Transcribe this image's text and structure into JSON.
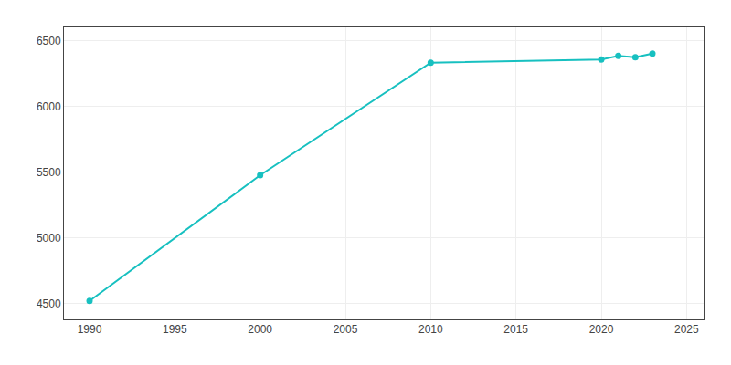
{
  "chart_data": {
    "type": "line",
    "x": [
      1990,
      2000,
      2010,
      2020,
      2021,
      2022,
      2023
    ],
    "values": [
      4521,
      5476,
      6331,
      6356,
      6383,
      6373,
      6400
    ],
    "color": "#17c0c0",
    "marker": "circle",
    "line_style": "solid",
    "xlim": [
      1988.5,
      2026
    ],
    "ylim": [
      4380,
      6600
    ],
    "xticks": [
      1990,
      1995,
      2000,
      2005,
      2010,
      2015,
      2020,
      2025
    ],
    "yticks": [
      4500,
      5000,
      5500,
      6000,
      6500
    ],
    "grid": true
  }
}
